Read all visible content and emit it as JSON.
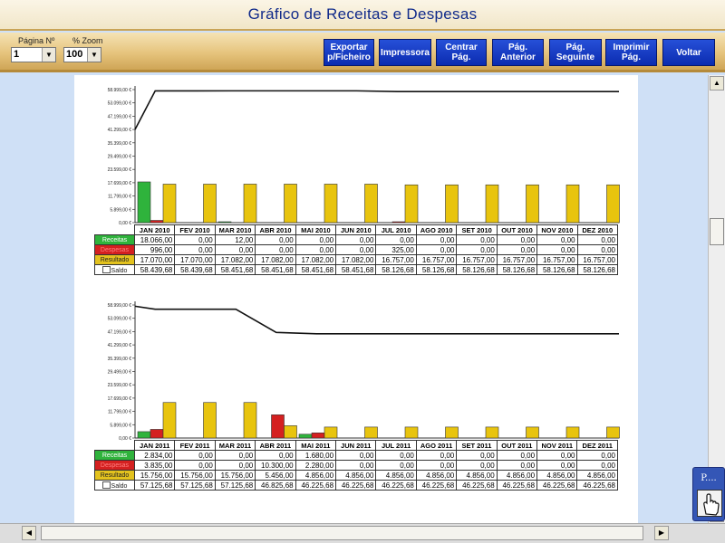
{
  "window": {
    "title": "Gráfico de Receitas e Despesas"
  },
  "toolbar": {
    "page_label": "Página Nº",
    "page_value": "1",
    "zoom_label": "% Zoom",
    "zoom_value": "100",
    "buttons": [
      {
        "id": "export",
        "label": "Exportar p/Ficheiro"
      },
      {
        "id": "printer",
        "label": "Impressora"
      },
      {
        "id": "center",
        "label": "Centrar Pág."
      },
      {
        "id": "prev",
        "label": "Pág. Anterior"
      },
      {
        "id": "next",
        "label": "Pág. Seguinte"
      },
      {
        "id": "print",
        "label": "Imprimir Pág."
      },
      {
        "id": "back",
        "label": "Voltar"
      }
    ]
  },
  "widget": {
    "caption": "P...."
  },
  "chart_data": [
    {
      "type": "bar",
      "y_ticks": [
        "58.999,00 €",
        "53.099,00 €",
        "47.199,00 €",
        "41.299,00 €",
        "35.399,00 €",
        "29.499,00 €",
        "23.599,00 €",
        "17.699,00 €",
        "11.799,00 €",
        "5.899,00 €",
        "0,00 €"
      ],
      "ylim": [
        0,
        58999
      ],
      "categories": [
        "JAN 2010",
        "FEV 2010",
        "MAR 2010",
        "ABR 2010",
        "MAI 2010",
        "JUN 2010",
        "JUL 2010",
        "AGO 2010",
        "SET 2010",
        "OUT 2010",
        "NOV 2010",
        "DEZ 2010"
      ],
      "row_labels": [
        "Receitas",
        "Despesas",
        "Resultado",
        "Saldo"
      ],
      "series": [
        {
          "name": "Receitas",
          "color": "#2fb33c",
          "values": [
            18066,
            0,
            12,
            0,
            0,
            0,
            0,
            0,
            0,
            0,
            0,
            0
          ]
        },
        {
          "name": "Despesas",
          "color": "#d42020",
          "values": [
            996,
            0,
            0,
            0,
            0,
            0,
            325,
            0,
            0,
            0,
            0,
            0
          ]
        },
        {
          "name": "Resultado",
          "color": "#e8c40e",
          "values": [
            17070,
            17070,
            17082,
            17082,
            17082,
            17082,
            16757,
            16757,
            16757,
            16757,
            16757,
            16757
          ]
        },
        {
          "name": "Saldo",
          "type": "line",
          "color": "#111111",
          "values": [
            58439.68,
            58439.68,
            58451.68,
            58451.68,
            58451.68,
            58451.68,
            58126.68,
            58126.68,
            58126.68,
            58126.68,
            58126.68,
            58126.68
          ]
        }
      ],
      "line_start": 41299,
      "table": [
        [
          "18.066,00",
          "0,00",
          "12,00",
          "0,00",
          "0,00",
          "0,00",
          "0,00",
          "0,00",
          "0,00",
          "0,00",
          "0,00",
          "0,00"
        ],
        [
          "996,00",
          "0,00",
          "0,00",
          "0,00",
          "0,00",
          "0,00",
          "325,00",
          "0,00",
          "0,00",
          "0,00",
          "0,00",
          "0,00"
        ],
        [
          "17.070,00",
          "17.070,00",
          "17.082,00",
          "17.082,00",
          "17.082,00",
          "17.082,00",
          "16.757,00",
          "16.757,00",
          "16.757,00",
          "16.757,00",
          "16.757,00",
          "16.757,00"
        ],
        [
          "58.439,68",
          "58.439,68",
          "58.451,68",
          "58.451,68",
          "58.451,68",
          "58.451,68",
          "58.126,68",
          "58.126,68",
          "58.126,68",
          "58.126,68",
          "58.126,68",
          "58.126,68"
        ]
      ]
    },
    {
      "type": "bar",
      "y_ticks": [
        "58.999,00 €",
        "53.099,00 €",
        "47.199,00 €",
        "41.299,00 €",
        "35.399,00 €",
        "29.499,00 €",
        "23.599,00 €",
        "17.699,00 €",
        "11.799,00 €",
        "5.899,00 €",
        "0,00 €"
      ],
      "ylim": [
        0,
        58999
      ],
      "categories": [
        "JAN 2011",
        "FEV 2011",
        "MAR 2011",
        "ABR 2011",
        "MAI 2011",
        "JUN 2011",
        "JUL 2011",
        "AGO 2011",
        "SET 2011",
        "OUT 2011",
        "NOV 2011",
        "DEZ 2011"
      ],
      "row_labels": [
        "Receitas",
        "Despesas",
        "Resultado",
        "Saldo"
      ],
      "series": [
        {
          "name": "Receitas",
          "color": "#2fb33c",
          "values": [
            2834,
            0,
            0,
            0,
            1680,
            0,
            0,
            0,
            0,
            0,
            0,
            0
          ]
        },
        {
          "name": "Despesas",
          "color": "#d42020",
          "values": [
            3835,
            0,
            0,
            10300,
            2280,
            0,
            0,
            0,
            0,
            0,
            0,
            0
          ]
        },
        {
          "name": "Resultado",
          "color": "#e8c40e",
          "values": [
            15756,
            15756,
            15756,
            5456,
            4856,
            4856,
            4856,
            4856,
            4856,
            4856,
            4856,
            4856
          ]
        },
        {
          "name": "Saldo",
          "type": "line",
          "color": "#111111",
          "values": [
            57125.68,
            57125.68,
            57125.68,
            46825.68,
            46225.68,
            46225.68,
            46225.68,
            46225.68,
            46225.68,
            46225.68,
            46225.68,
            46225.68
          ]
        }
      ],
      "line_start": 58439.68,
      "table": [
        [
          "2.834,00",
          "0,00",
          "0,00",
          "0,00",
          "1.680,00",
          "0,00",
          "0,00",
          "0,00",
          "0,00",
          "0,00",
          "0,00",
          "0,00"
        ],
        [
          "3.835,00",
          "0,00",
          "0,00",
          "10.300,00",
          "2.280,00",
          "0,00",
          "0,00",
          "0,00",
          "0,00",
          "0,00",
          "0,00",
          "0,00"
        ],
        [
          "15.756,00",
          "15.756,00",
          "15.756,00",
          "5.456,00",
          "4.856,00",
          "4.856,00",
          "4.856,00",
          "4.856,00",
          "4.856,00",
          "4.856,00",
          "4.856,00",
          "4.856,00"
        ],
        [
          "57.125,68",
          "57.125,68",
          "57.125,68",
          "46.825,68",
          "46.225,68",
          "46.225,68",
          "46.225,68",
          "46.225,68",
          "46.225,68",
          "46.225,68",
          "46.225,68",
          "46.225,68"
        ]
      ]
    }
  ]
}
